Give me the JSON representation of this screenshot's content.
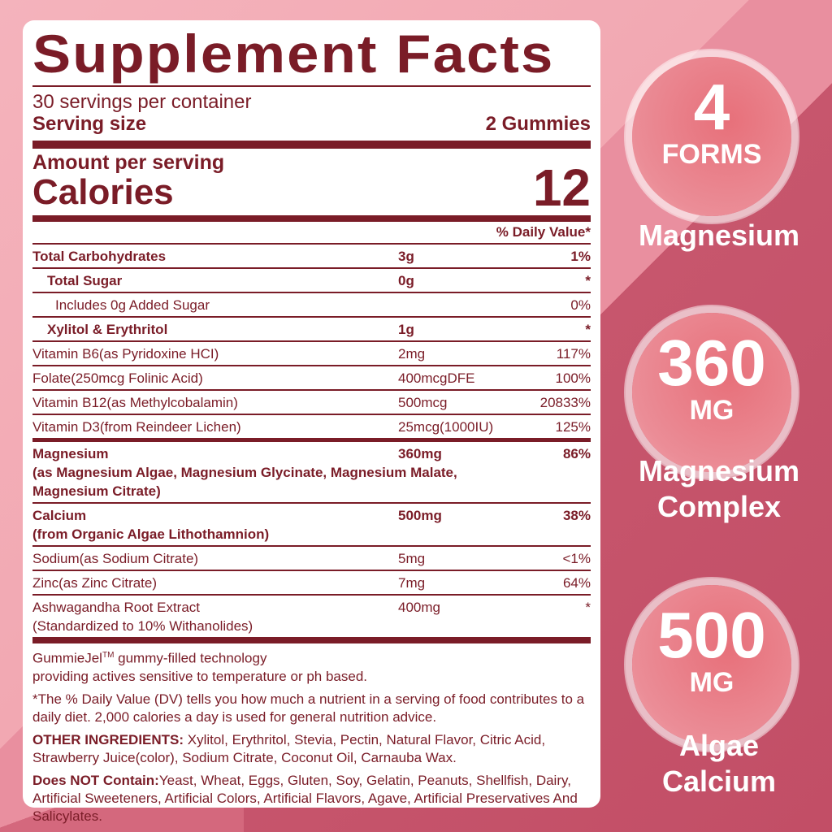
{
  "label": {
    "title": "Supplement Facts",
    "servings": "30 servings per container",
    "serving_size_label": "Serving size",
    "serving_size_value": "2 Gummies",
    "amount_per_serving": "Amount per serving",
    "calories_label": "Calories",
    "calories_value": "12",
    "dv_header": "% Daily Value*",
    "rows": [
      {
        "name": "Total Carbohydrates",
        "amount": "3g",
        "dv": "1%"
      },
      {
        "name": "Total Sugar",
        "amount": "0g",
        "dv": "*"
      },
      {
        "name": "Includes 0g Added Sugar",
        "amount": "",
        "dv": "0%"
      },
      {
        "name": "Xylitol & Erythritol",
        "amount": "1g",
        "dv": "*"
      },
      {
        "name": "Vitamin B6(as Pyridoxine HCI)",
        "amount": "2mg",
        "dv": "117%"
      },
      {
        "name": "Folate(250mcg Folinic Acid)",
        "amount": "400mcgDFE",
        "dv": "100%"
      },
      {
        "name": "Vitamin B12(as Methylcobalamin)",
        "amount": "500mcg",
        "dv": "20833%"
      },
      {
        "name": "Vitamin D3(from Reindeer Lichen)",
        "amount": "25mcg(1000IU)",
        "dv": "125%"
      },
      {
        "name": "Magnesium",
        "sub": "(as Magnesium Algae, Magnesium Glycinate, Magnesium Malate, Magnesium Citrate)",
        "amount": "360mg",
        "dv": "86%"
      },
      {
        "name": "Calcium",
        "sub": "(from Organic Algae Lithothamnion)",
        "amount": "500mg",
        "dv": "38%"
      },
      {
        "name": "Sodium(as Sodium Citrate)",
        "amount": "5mg",
        "dv": "<1%"
      },
      {
        "name": "Zinc(as Zinc Citrate)",
        "amount": "7mg",
        "dv": "64%"
      },
      {
        "name": "Ashwagandha Root Extract",
        "sub": "(Standardized to 10% Withanolides)",
        "amount": "400mg",
        "dv": "*"
      }
    ],
    "gummiejel_1": "GummieJel",
    "gummiejel_tm": "TM",
    "gummiejel_2": " gummy-filled technology",
    "gummiejel_3": "providing actives sensitive to temperature or ph based.",
    "dv_note": "*The % Daily Value (DV) tells you how much a nutrient in a serving of food contributes to a daily diet. 2,000 calories a day is used for general nutrition advice.",
    "other_label": "OTHER INGREDIENTS:",
    "other_text": " Xylitol, Erythritol, Stevia, Pectin, Natural Flavor, Citric Acid, Strawberry Juice(color), Sodium Citrate, Coconut Oil, Carnauba Wax.",
    "not_label": "Does NOT Contain:",
    "not_text": "Yeast, Wheat, Eggs, Gluten, Soy, Gelatin, Peanuts, Shellfish, Dairy, Artificial Sweeteners, Artificial Colors, Artificial Flavors, Agave, Artificial Preservatives And Salicylates."
  },
  "badges": [
    {
      "big": "4",
      "small": "FORMS",
      "caption": "Magnesium"
    },
    {
      "big": "360",
      "small": "MG",
      "caption": "Magnesium Complex"
    },
    {
      "big": "500",
      "small": "MG",
      "caption": "Algae Calcium"
    }
  ],
  "colors": {
    "text": "#7a1c27",
    "bg_light": "#f2a8b2",
    "bg_dark": "#c24e66"
  }
}
